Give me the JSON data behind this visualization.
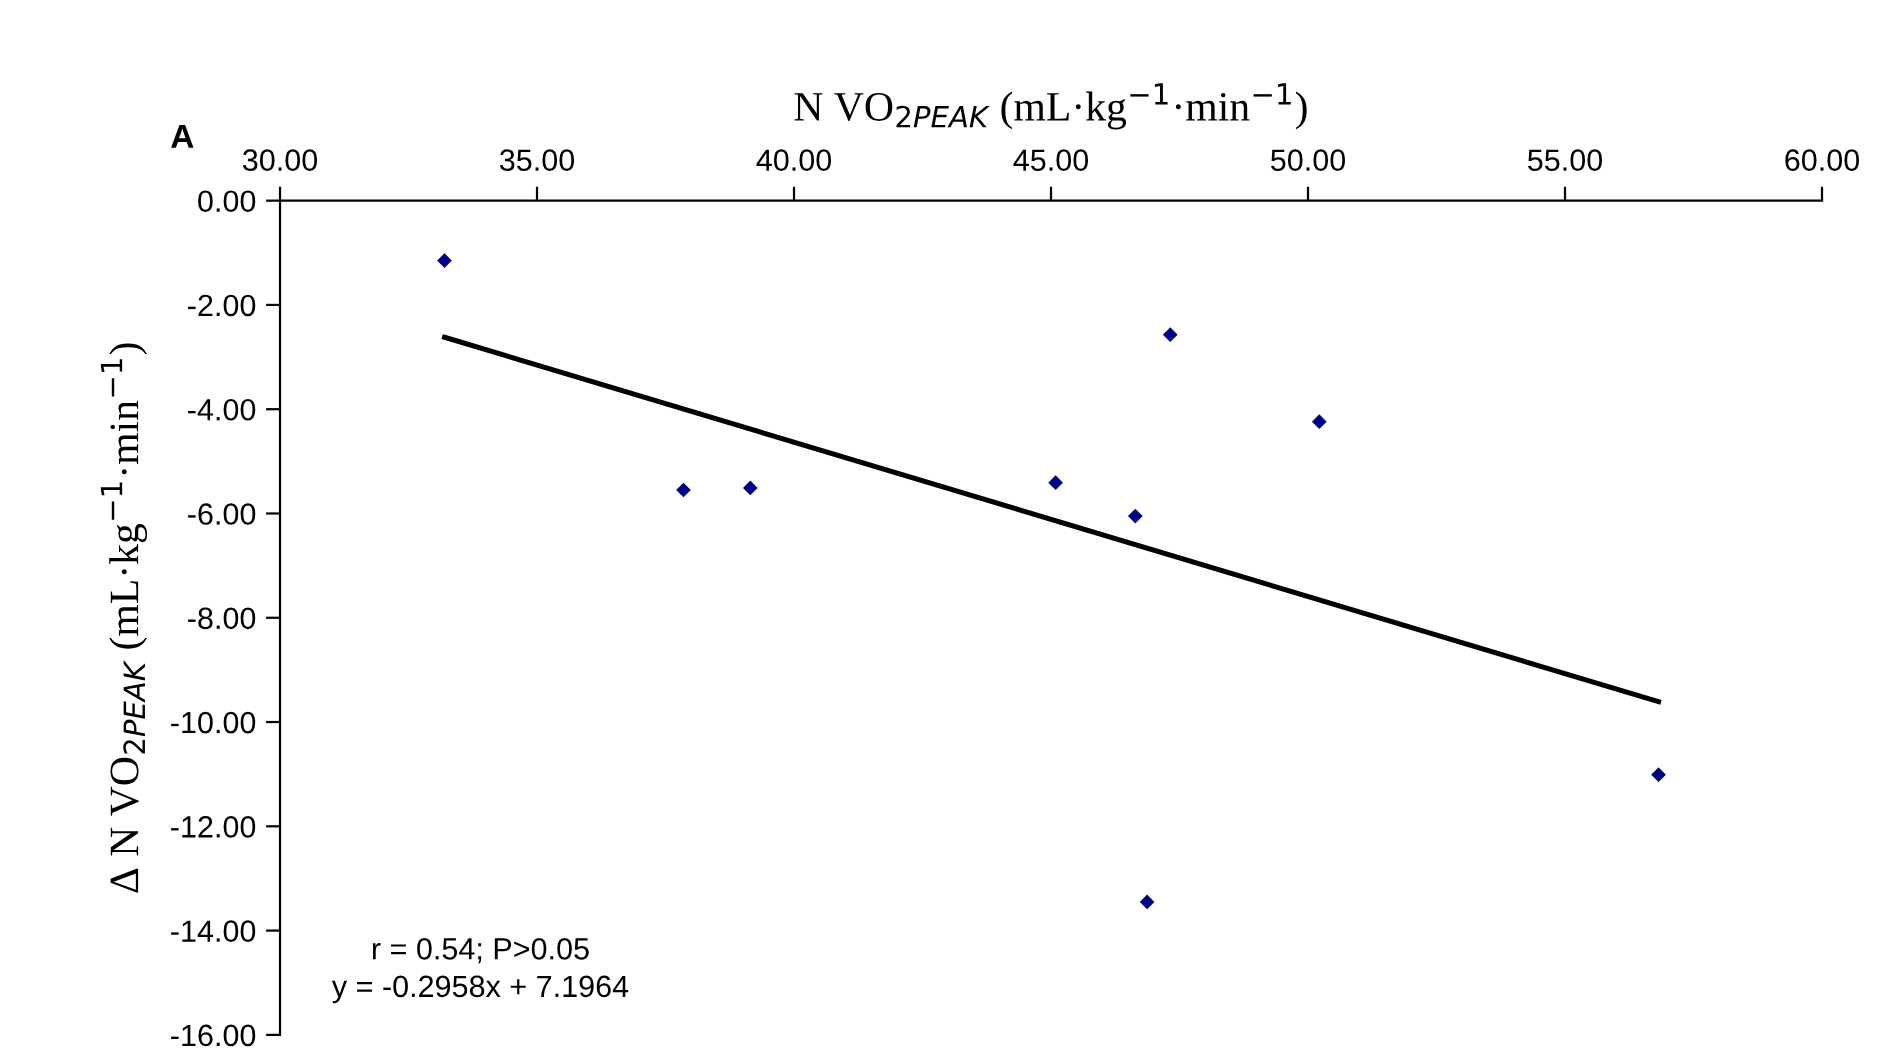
{
  "chart_data": {
    "type": "scatter",
    "title": "A",
    "xlabel": "N VO$_{2PEAK}$ (mL·kg$^{−1}$·min$^{−1}$)",
    "ylabel": "Δ N VO$_{2PEAK}$ (mL·kg$^{−1}$·min$^{−1}$)",
    "series": [
      {
        "color": "#000080",
        "marker": "diamond",
        "x": [
          33.2,
          37.85,
          39.15,
          45.09,
          46.64,
          47.32,
          50.22,
          56.82,
          46.87
        ],
        "values": [
          -1.15,
          -5.55,
          -5.51,
          -5.41,
          -6.05,
          -2.57,
          -4.24,
          -11.01,
          -13.45
        ]
      },
      {
        "type": "line",
        "color": "#000000",
        "line_style": "solid",
        "marker": "none",
        "x": [
          33.2,
          56.82
        ],
        "values": [
          -2.62,
          -9.61
        ]
      }
    ],
    "xlim": [
      30,
      60
    ],
    "xticks": [
      {
        "value": 30,
        "label": "30.00"
      },
      {
        "value": 35,
        "label": "35.00"
      },
      {
        "value": 40,
        "label": "40.00"
      },
      {
        "value": 45,
        "label": "45.00"
      },
      {
        "value": 50,
        "label": "50.00"
      },
      {
        "value": 55,
        "label": "55.00"
      },
      {
        "value": 60,
        "label": "60.00"
      }
    ],
    "ylim": [
      -16,
      0
    ],
    "yticks": [
      {
        "value": 0,
        "label": "0.00"
      },
      {
        "value": -2,
        "label": "-2.00"
      },
      {
        "value": -4,
        "label": "-4.00"
      },
      {
        "value": -6,
        "label": "-6.00"
      },
      {
        "value": -8,
        "label": "-8.00"
      },
      {
        "value": -10,
        "label": "-10.00"
      },
      {
        "value": -12,
        "label": "-12.00"
      },
      {
        "value": -14,
        "label": "-14.00"
      },
      {
        "value": -16,
        "label": "-16.00"
      }
    ],
    "annotations": [
      "r = 0.54; P>0.05",
      "y = -0.2958x + 7.1964"
    ],
    "grid": false,
    "legend": false
  }
}
